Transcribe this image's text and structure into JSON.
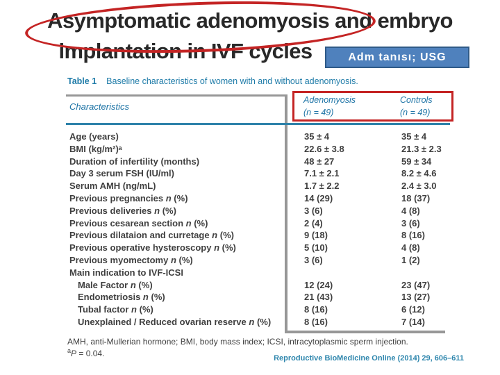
{
  "title": {
    "line1": "Asymptomatic adenomyosis and embryo",
    "line2": "implantation in IVF cycles"
  },
  "annotation": {
    "box_label": "Adm tanısı; USG",
    "box_color": "#4f81bd",
    "box_border_color": "#2f5a88",
    "highlight_color": "#c42424"
  },
  "table": {
    "caption_label": "Table 1",
    "caption_text": "Baseline characteristics of women with and without adenomyosis.",
    "col_header_left": "Characteristics",
    "columns": [
      {
        "name": "Adenomyosis",
        "n": "(n = 49)"
      },
      {
        "name": "Controls",
        "n": "(n = 49)"
      }
    ],
    "rows": [
      {
        "label": "Age (years)",
        "v1": "35 ± 4",
        "v2": "35 ± 4",
        "indent": false
      },
      {
        "label": "BMI (kg/m²)ᵃ",
        "v1": "22.6 ± 3.8",
        "v2": "21.3 ± 2.3",
        "indent": false
      },
      {
        "label": "Duration of infertility (months)",
        "v1": "48 ± 27",
        "v2": "59 ± 34",
        "indent": false
      },
      {
        "label": "Day 3 serum FSH (IU/ml)",
        "v1": "7.1 ± 2.1",
        "v2": "8.2 ± 4.6",
        "indent": false
      },
      {
        "label": "Serum AMH (ng/mL)",
        "v1": "1.7 ± 2.2",
        "v2": "2.4 ± 3.0",
        "indent": false
      },
      {
        "label": "Previous pregnancies n (%)",
        "v1": "14 (29)",
        "v2": "18 (37)",
        "indent": false
      },
      {
        "label": "Previous deliveries n (%)",
        "v1": "3 (6)",
        "v2": "4 (8)",
        "indent": false
      },
      {
        "label": "Previous cesarean section n (%)",
        "v1": "2 (4)",
        "v2": "3 (6)",
        "indent": false
      },
      {
        "label": "Previous dilataion and curretage n (%)",
        "v1": "9 (18)",
        "v2": "8 (16)",
        "indent": false
      },
      {
        "label": "Previous operative hysteroscopy n (%)",
        "v1": "5 (10)",
        "v2": "4 (8)",
        "indent": false
      },
      {
        "label": "Previous myomectomy n (%)",
        "v1": "3 (6)",
        "v2": "1 (2)",
        "indent": false
      },
      {
        "label": "Main indication to IVF-ICSI",
        "v1": "",
        "v2": "",
        "indent": false
      },
      {
        "label": "Male Factor n (%)",
        "v1": "12 (24)",
        "v2": "23 (47)",
        "indent": true
      },
      {
        "label": "Endometriosis n (%)",
        "v1": "21 (43)",
        "v2": "13 (27)",
        "indent": true
      },
      {
        "label": "Tubal factor n (%)",
        "v1": "8 (16)",
        "v2": "6 (12)",
        "indent": true
      },
      {
        "label": "Unexplained / Reduced ovarian reserve n (%)",
        "v1": "8 (16)",
        "v2": "7 (14)",
        "indent": true
      }
    ],
    "footnote1": "AMH, anti-Mullerian hormone; BMI, body mass index; ICSI, intracytoplasmic sperm injection.",
    "footnote2": {
      "sup": "a",
      "var": "P",
      "rest": " = 0.04."
    },
    "citation": "Reproductive BioMedicine Online (2014) 29, 606–611"
  }
}
